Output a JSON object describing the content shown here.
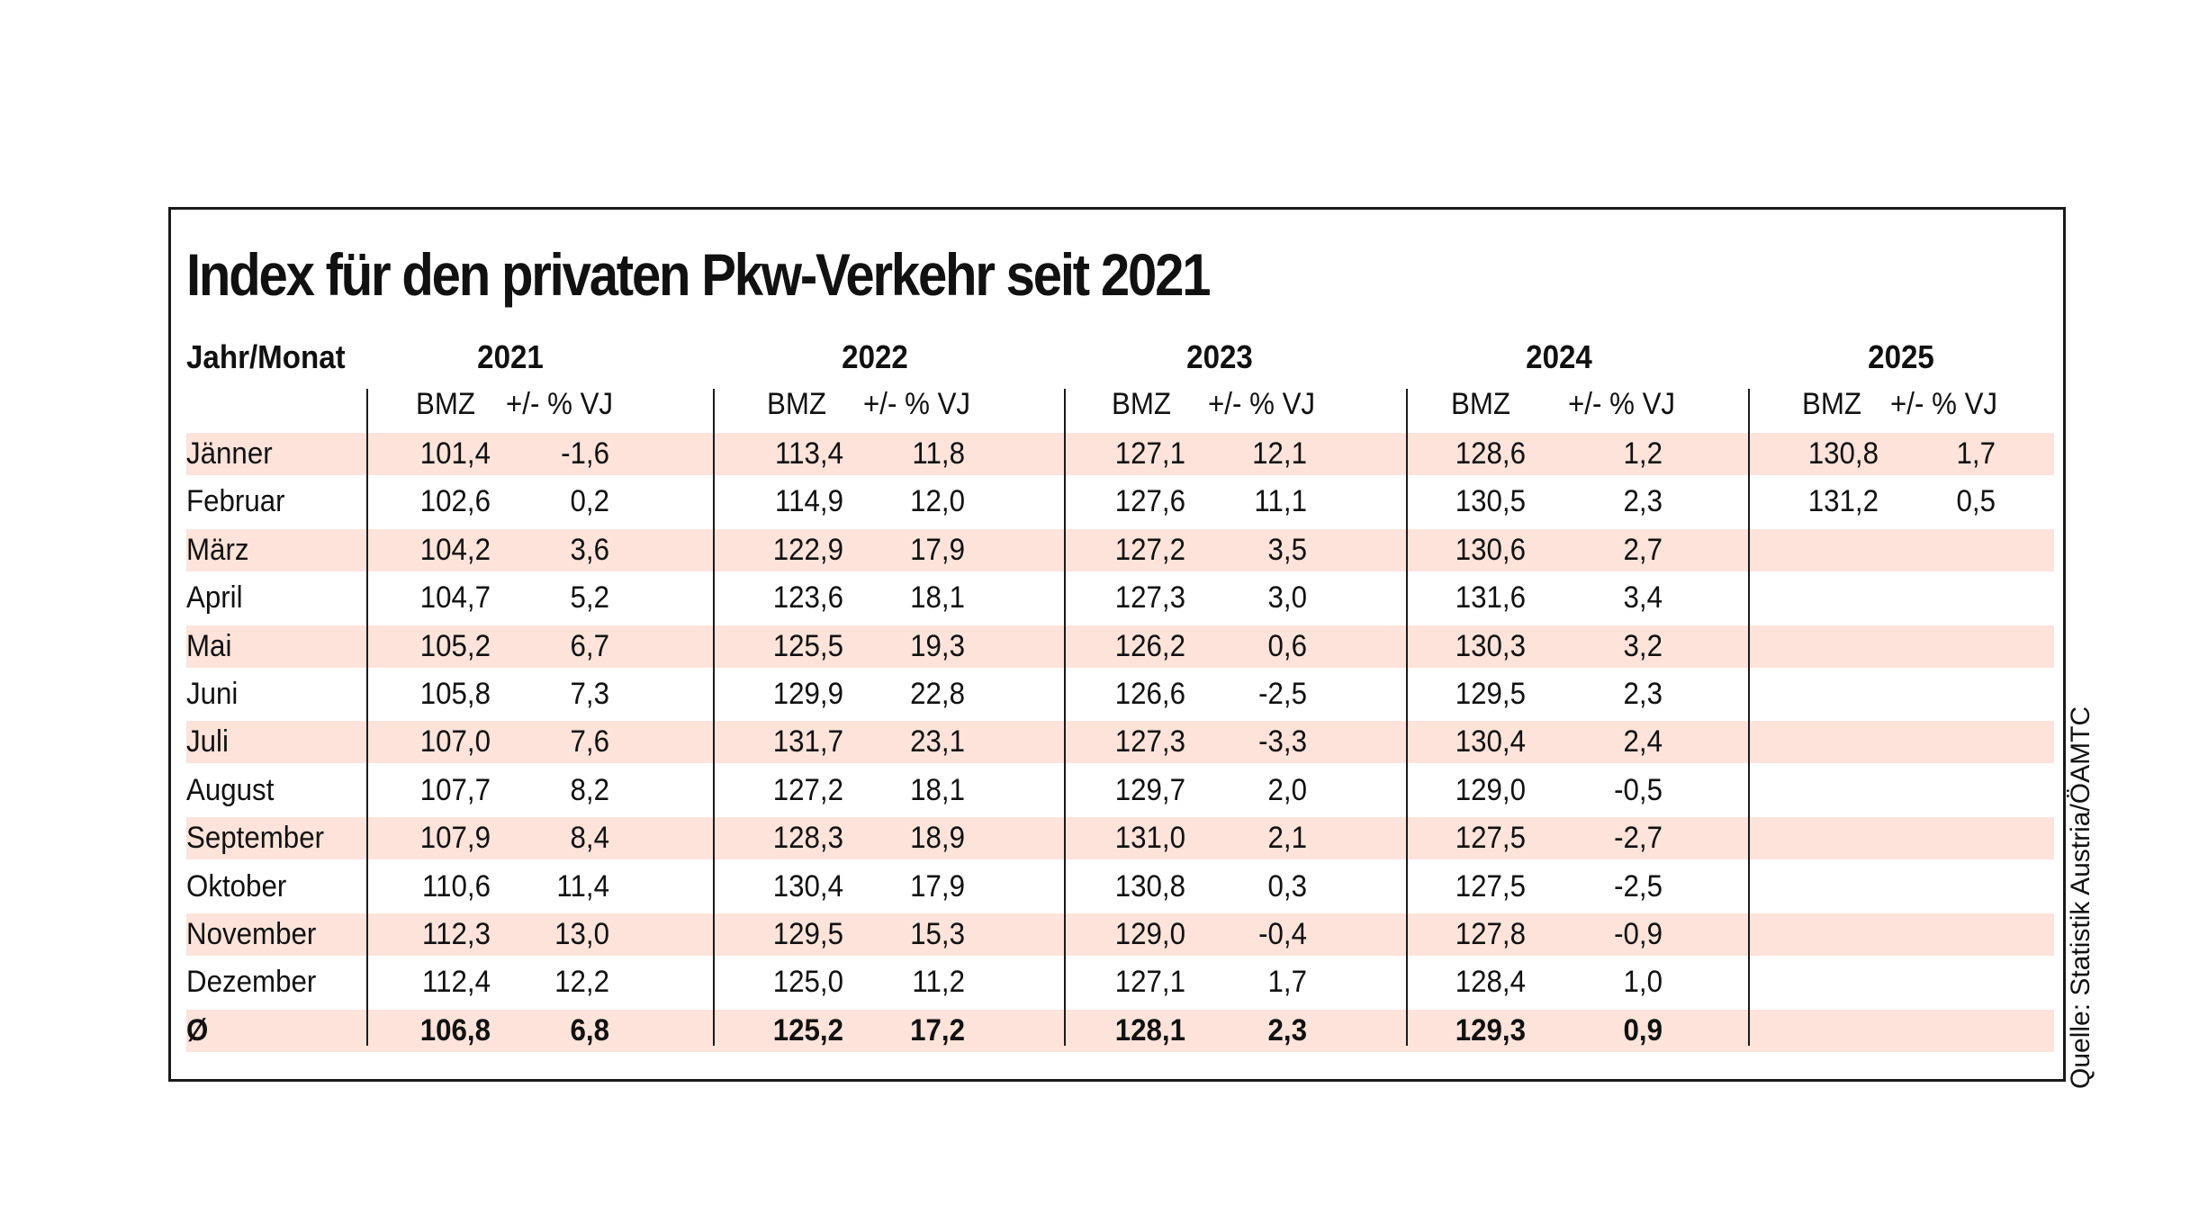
{
  "title": "Index für den privaten Pkw-Verkehr seit 2021",
  "header": {
    "row_label": "Jahr/Monat",
    "years": [
      "2021",
      "2022",
      "2023",
      "2024",
      "2025"
    ],
    "sub_bmz": "BMZ",
    "sub_change": "+/- % VJ"
  },
  "rows": [
    {
      "label": "Jänner",
      "values": [
        "101,4",
        "-1,6",
        "113,4",
        "11,8",
        "127,1",
        "12,1",
        "128,6",
        "1,2",
        "130,8",
        "1,7"
      ]
    },
    {
      "label": "Februar",
      "values": [
        "102,6",
        "0,2",
        "114,9",
        "12,0",
        "127,6",
        "11,1",
        "130,5",
        "2,3",
        "131,2",
        "0,5"
      ]
    },
    {
      "label": "März",
      "values": [
        "104,2",
        "3,6",
        "122,9",
        "17,9",
        "127,2",
        "3,5",
        "130,6",
        "2,7",
        "",
        ""
      ]
    },
    {
      "label": "April",
      "values": [
        "104,7",
        "5,2",
        "123,6",
        "18,1",
        "127,3",
        "3,0",
        "131,6",
        "3,4",
        "",
        ""
      ]
    },
    {
      "label": "Mai",
      "values": [
        "105,2",
        "6,7",
        "125,5",
        "19,3",
        "126,2",
        "0,6",
        "130,3",
        "3,2",
        "",
        ""
      ]
    },
    {
      "label": "Juni",
      "values": [
        "105,8",
        "7,3",
        "129,9",
        "22,8",
        "126,6",
        "-2,5",
        "129,5",
        "2,3",
        "",
        ""
      ]
    },
    {
      "label": "Juli",
      "values": [
        "107,0",
        "7,6",
        "131,7",
        "23,1",
        "127,3",
        "-3,3",
        "130,4",
        "2,4",
        "",
        ""
      ]
    },
    {
      "label": "August",
      "values": [
        "107,7",
        "8,2",
        "127,2",
        "18,1",
        "129,7",
        "2,0",
        "129,0",
        "-0,5",
        "",
        ""
      ]
    },
    {
      "label": "September",
      "values": [
        "107,9",
        "8,4",
        "128,3",
        "18,9",
        "131,0",
        "2,1",
        "127,5",
        "-2,7",
        "",
        ""
      ]
    },
    {
      "label": "Oktober",
      "values": [
        "110,6",
        "11,4",
        "130,4",
        "17,9",
        "130,8",
        "0,3",
        "127,5",
        "-2,5",
        "",
        ""
      ]
    },
    {
      "label": "November",
      "values": [
        "112,3",
        "13,0",
        "129,5",
        "15,3",
        "129,0",
        "-0,4",
        "127,8",
        "-0,9",
        "",
        ""
      ]
    },
    {
      "label": "Dezember",
      "values": [
        "112,4",
        "12,2",
        "125,0",
        "11,2",
        "127,1",
        "1,7",
        "128,4",
        "1,0",
        "",
        ""
      ]
    },
    {
      "label": "Ø",
      "values": [
        "106,8",
        "6,8",
        "125,2",
        "17,2",
        "128,1",
        "2,3",
        "129,3",
        "0,9",
        "",
        ""
      ],
      "bold": true
    }
  ],
  "source": "Quelle: Statistik Austria/ÖAMTC",
  "colors": {
    "band": "#fde3da",
    "border": "#1a1a1a"
  }
}
